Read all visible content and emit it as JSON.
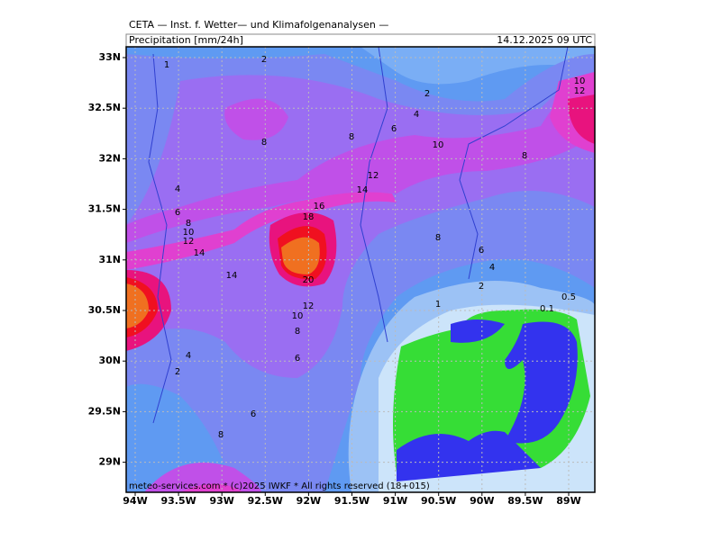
{
  "header": {
    "title": "CETA — Inst. f. Wetter— und Klimafolgenanalysen —",
    "field": "Precipitation [mm/24h]",
    "valid_time": "14.12.2025 09 UTC"
  },
  "map": {
    "lat_labels": [
      "33N",
      "32.5N",
      "32N",
      "31.5N",
      "31N",
      "30.5N",
      "30N",
      "29.5N",
      "29N"
    ],
    "lon_labels": [
      "94W",
      "93.5W",
      "93W",
      "92.5W",
      "92W",
      "91.5W",
      "91W",
      "90.5W",
      "90W",
      "89.5W",
      "89W"
    ],
    "contour_labels": [
      "1",
      "2",
      "2",
      "4",
      "6",
      "8",
      "8",
      "10",
      "8",
      "10",
      "12",
      "4",
      "12",
      "14",
      "6",
      "16",
      "18",
      "8",
      "10",
      "12",
      "14",
      "8",
      "6",
      "4",
      "14",
      "20",
      "2",
      "0.5",
      "12",
      "1",
      "0.1",
      "10",
      "8",
      "4",
      "6",
      "2",
      "6",
      "8"
    ],
    "footer": "meteo-services.com * (c)2025 IWKF * All rights reserved (18+015)"
  }
}
